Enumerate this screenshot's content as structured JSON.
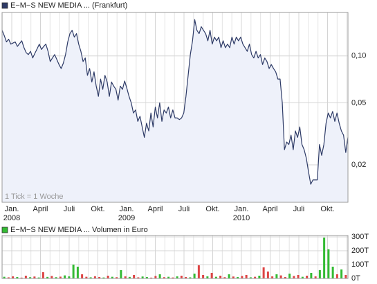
{
  "chart_data": [
    {
      "type": "line",
      "log_scale": true,
      "grid": true,
      "fill": "#eef1fa",
      "annotation": "1 Tick = 1 Woche",
      "series": [
        {
          "name": "E−M−S NEW MEDIA ... (Frankfurt)",
          "color": "#2d3a66",
          "values": [
            0.146,
            0.135,
            0.123,
            0.128,
            0.119,
            0.121,
            0.123,
            0.115,
            0.12,
            0.125,
            0.113,
            0.105,
            0.102,
            0.107,
            0.097,
            0.104,
            0.111,
            0.119,
            0.11,
            0.115,
            0.119,
            0.107,
            0.092,
            0.097,
            0.102,
            0.095,
            0.088,
            0.083,
            0.09,
            0.102,
            0.123,
            0.139,
            0.146,
            0.132,
            0.139,
            0.119,
            0.107,
            0.092,
            0.097,
            0.075,
            0.083,
            0.068,
            0.079,
            0.064,
            0.055,
            0.071,
            0.061,
            0.075,
            0.068,
            0.055,
            0.068,
            0.064,
            0.061,
            0.052,
            0.064,
            0.061,
            0.069,
            0.062,
            0.055,
            0.05,
            0.043,
            0.045,
            0.038,
            0.041,
            0.035,
            0.03,
            0.037,
            0.033,
            0.043,
            0.035,
            0.047,
            0.04,
            0.05,
            0.038,
            0.045,
            0.043,
            0.047,
            0.04,
            0.045,
            0.04,
            0.04,
            0.039,
            0.04,
            0.043,
            0.055,
            0.075,
            0.102,
            0.125,
            0.171,
            0.146,
            0.139,
            0.154,
            0.146,
            0.139,
            0.125,
            0.146,
            0.119,
            0.132,
            0.125,
            0.132,
            0.113,
            0.125,
            0.113,
            0.119,
            0.113,
            0.132,
            0.119,
            0.132,
            0.125,
            0.132,
            0.119,
            0.113,
            0.107,
            0.119,
            0.102,
            0.097,
            0.107,
            0.097,
            0.102,
            0.088,
            0.097,
            0.092,
            0.083,
            0.088,
            0.083,
            0.079,
            0.071,
            0.071,
            0.05,
            0.025,
            0.028,
            0.027,
            0.031,
            0.025,
            0.033,
            0.03,
            0.035,
            0.027,
            0.025,
            0.022,
            0.018,
            0.015,
            0.016,
            0.016,
            0.016,
            0.027,
            0.023,
            0.027,
            0.037,
            0.043,
            0.04,
            0.044,
            0.038,
            0.043,
            0.037,
            0.033,
            0.031,
            0.024,
            0.03
          ]
        }
      ],
      "ylim": [
        0.0115,
        0.19
      ],
      "yticks": [
        {
          "value": 0.1,
          "label": "0,10"
        },
        {
          "value": 0.05,
          "label": "0,05"
        },
        {
          "value": 0.02,
          "label": "0,02"
        }
      ],
      "x_labels": [
        {
          "month": "Jan.",
          "year": "2008"
        },
        {
          "month": "April"
        },
        {
          "month": "Juli"
        },
        {
          "month": "Okt."
        },
        {
          "month": "Jan.",
          "year": "2009"
        },
        {
          "month": "April"
        },
        {
          "month": "Juli"
        },
        {
          "month": "Okt."
        },
        {
          "month": "Jan.",
          "year": "2010"
        },
        {
          "month": "April"
        },
        {
          "month": "Juli"
        },
        {
          "month": "Okt."
        }
      ]
    },
    {
      "type": "bar",
      "grid": true,
      "series": [
        {
          "name": "E−M−S NEW MEDIA ... Volumen in Euro",
          "color": "#33bb33",
          "values": [
            12000,
            8000,
            15000,
            10000,
            6000,
            20000,
            9000,
            14000,
            7000,
            45000,
            11000,
            18000,
            9000,
            13000,
            22000,
            15000,
            100000,
            85000,
            30000,
            12000,
            8000,
            16000,
            10000,
            7000,
            20000,
            12000,
            9000,
            60000,
            15000,
            11000,
            25000,
            8000,
            14000,
            10000,
            6000,
            18000,
            30000,
            9000,
            12000,
            7000,
            15000,
            20000,
            10000,
            8000,
            35000,
            95000,
            25000,
            15000,
            40000,
            12000,
            20000,
            9000,
            30000,
            14000,
            10000,
            18000,
            25000,
            8000,
            12000,
            20000,
            80000,
            50000,
            15000,
            30000,
            22000,
            10000,
            35000,
            18000,
            25000,
            12000,
            20000,
            40000,
            15000,
            60000,
            295000,
            210000,
            85000,
            30000,
            65000,
            25000
          ],
          "bar_colors": [
            "#33bb33",
            "#dd4444",
            "#dd4444",
            "#33bb33",
            "#dd4444",
            "#dd4444",
            "#33bb33",
            "#dd4444",
            "#33bb33",
            "#dd4444",
            "#33bb33",
            "#dd4444",
            "#33bb33",
            "#dd4444",
            "#33bb33",
            "#33bb33",
            "#33bb33",
            "#33bb33",
            "#dd4444",
            "#dd4444",
            "#33bb33",
            "#dd4444",
            "#dd4444",
            "#33bb33",
            "#dd4444",
            "#33bb33",
            "#dd4444",
            "#33bb33",
            "#dd4444",
            "#33bb33",
            "#dd4444",
            "#dd4444",
            "#33bb33",
            "#33bb33",
            "#dd4444",
            "#dd4444",
            "#33bb33",
            "#dd4444",
            "#33bb33",
            "#dd4444",
            "#33bb33",
            "#dd4444",
            "#dd4444",
            "#33bb33",
            "#33bb33",
            "#dd4444",
            "#dd4444",
            "#33bb33",
            "#dd4444",
            "#33bb33",
            "#dd4444",
            "#dd4444",
            "#33bb33",
            "#dd4444",
            "#33bb33",
            "#dd4444",
            "#dd4444",
            "#33bb33",
            "#dd4444",
            "#33bb33",
            "#dd4444",
            "#dd4444",
            "#dd4444",
            "#33bb33",
            "#dd4444",
            "#dd4444",
            "#33bb33",
            "#dd4444",
            "#dd4444",
            "#33bb33",
            "#dd4444",
            "#33bb33",
            "#dd4444",
            "#33bb33",
            "#33bb33",
            "#33bb33",
            "#33bb33",
            "#dd4444",
            "#33bb33",
            "#dd4444"
          ]
        }
      ],
      "ylim": [
        0,
        310000
      ],
      "yticks": [
        {
          "value": 300000,
          "label": "300T"
        },
        {
          "value": 200000,
          "label": "200T"
        },
        {
          "value": 100000,
          "label": "100T"
        },
        {
          "value": 0,
          "label": "0T"
        }
      ]
    }
  ]
}
